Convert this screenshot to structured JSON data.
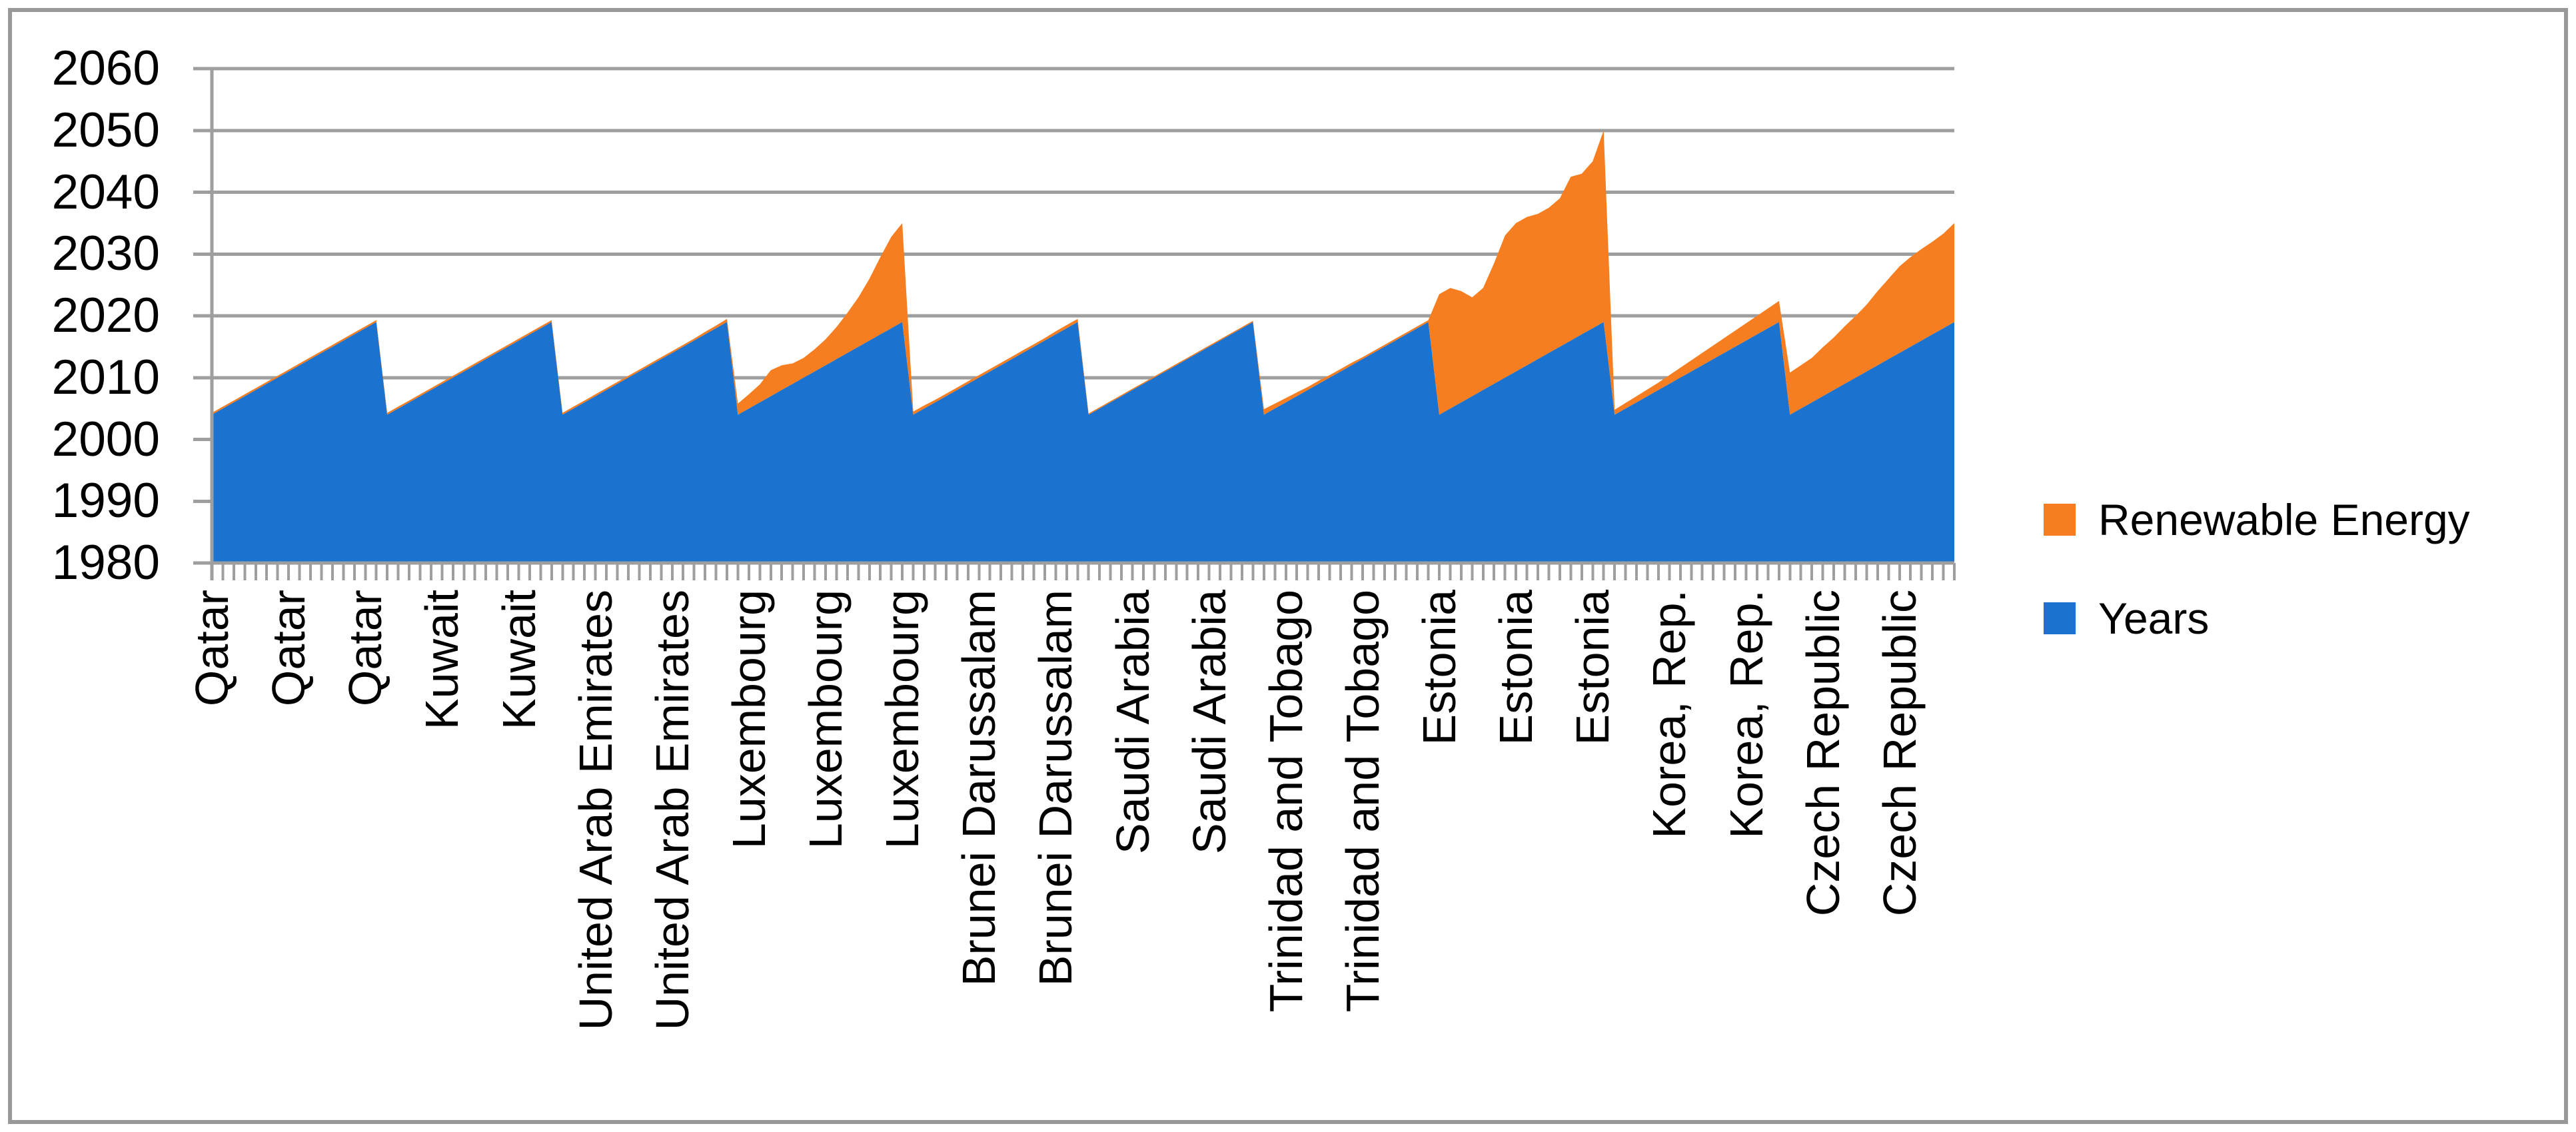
{
  "legend": [
    {
      "label": "Renewable Energy",
      "series": "top",
      "color": "#F67E20"
    },
    {
      "label": "Years",
      "series": "base",
      "color": "#1B73CF"
    }
  ],
  "colors": {
    "blue_area": "#1B73CF",
    "orange_area": "#F67E20",
    "gridline": "#9E9E9E",
    "axis": "#9E9E9E",
    "frame_border": "#999999",
    "text": "#000000",
    "background": "#FFFFFF"
  },
  "chart_data": {
    "type": "area",
    "stacked": true,
    "title": "",
    "grid": true,
    "legend_position": "right",
    "y_axis": {
      "min": 1980,
      "max": 2060,
      "tick_interval": 10,
      "tick_labels": [
        "2060",
        "2050",
        "2040",
        "2030",
        "2020",
        "2010",
        "2000",
        "1990",
        "1980"
      ]
    },
    "x_axis": {
      "points_per_country": 16,
      "label_every_n_points": 7,
      "visible_labels": [
        "Qatar",
        "Qatar",
        "Qatar",
        "Kuwait",
        "Kuwait",
        "United Arab Emirates",
        "United Arab Emirates",
        "Luxembourg",
        "Luxembourg",
        "Luxembourg",
        "Brunei Darussalam",
        "Brunei Darussalam",
        "Saudi Arabia",
        "Saudi Arabia",
        "Trinidad and Tobago",
        "Trinidad and Tobago",
        "Estonia",
        "Estonia",
        "Estonia",
        "Korea, Rep.",
        "Korea, Rep.",
        "Czech Republic",
        "Czech Republic"
      ]
    },
    "base_series": {
      "name": "Years",
      "values_per_country": [
        2004,
        2005,
        2006,
        2007,
        2008,
        2009,
        2010,
        2011,
        2012,
        2013,
        2014,
        2015,
        2016,
        2017,
        2018,
        2019
      ]
    },
    "top_series": {
      "name": "Renewable Energy"
    },
    "countries": [
      {
        "name": "Qatar",
        "renewable": [
          0.3,
          0.3,
          0.3,
          0.3,
          0.3,
          0.3,
          0.3,
          0.3,
          0.3,
          0.3,
          0.3,
          0.3,
          0.3,
          0.3,
          0.3,
          0.3
        ]
      },
      {
        "name": "Kuwait",
        "renewable": [
          0.3,
          0.3,
          0.3,
          0.3,
          0.3,
          0.3,
          0.3,
          0.3,
          0.3,
          0.3,
          0.3,
          0.3,
          0.3,
          0.3,
          0.3,
          0.3
        ]
      },
      {
        "name": "United Arab Emirates",
        "renewable": [
          0.3,
          0.3,
          0.3,
          0.3,
          0.3,
          0.3,
          0.3,
          0.3,
          0.3,
          0.3,
          0.3,
          0.3,
          0.3,
          0.4,
          0.4,
          0.5
        ]
      },
      {
        "name": "Luxembourg",
        "renewable": [
          1.8,
          2.3,
          2.9,
          4.2,
          4.0,
          3.3,
          3.2,
          3.6,
          4.2,
          5.2,
          6.5,
          8.0,
          10.0,
          12.5,
          14.8,
          16.0
        ]
      },
      {
        "name": "Brunei Darussalam",
        "renewable": [
          0.5,
          0.5,
          0.4,
          0.4,
          0.4,
          0.4,
          0.4,
          0.4,
          0.4,
          0.4,
          0.4,
          0.4,
          0.4,
          0.5,
          0.5,
          0.5
        ]
      },
      {
        "name": "Saudi Arabia",
        "renewable": [
          0.2,
          0.2,
          0.2,
          0.2,
          0.2,
          0.2,
          0.2,
          0.2,
          0.2,
          0.2,
          0.2,
          0.2,
          0.2,
          0.2,
          0.2,
          0.2
        ]
      },
      {
        "name": "Trinidad and Tobago",
        "renewable": [
          0.9,
          0.8,
          0.7,
          0.6,
          0.5,
          0.5,
          0.4,
          0.4,
          0.4,
          0.3,
          0.3,
          0.3,
          0.3,
          0.3,
          0.3,
          0.3
        ]
      },
      {
        "name": "Estonia",
        "renewable": [
          19.5,
          19.5,
          18.0,
          16.0,
          16.5,
          19.5,
          23.0,
          24.0,
          24.0,
          23.5,
          23.5,
          24.0,
          26.5,
          26.0,
          27.0,
          31.0
        ]
      },
      {
        "name": "Korea, Rep.",
        "renewable": [
          0.8,
          0.9,
          1.0,
          1.1,
          1.2,
          1.4,
          1.6,
          1.8,
          2.0,
          2.2,
          2.4,
          2.6,
          2.8,
          3.0,
          3.2,
          3.4
        ]
      },
      {
        "name": "Czech Republic",
        "renewable": [
          6.8,
          7.0,
          7.2,
          7.9,
          8.5,
          9.3,
          10.0,
          10.8,
          12.0,
          13.0,
          14.0,
          14.5,
          14.8,
          15.0,
          15.3,
          16.0
        ]
      }
    ]
  }
}
